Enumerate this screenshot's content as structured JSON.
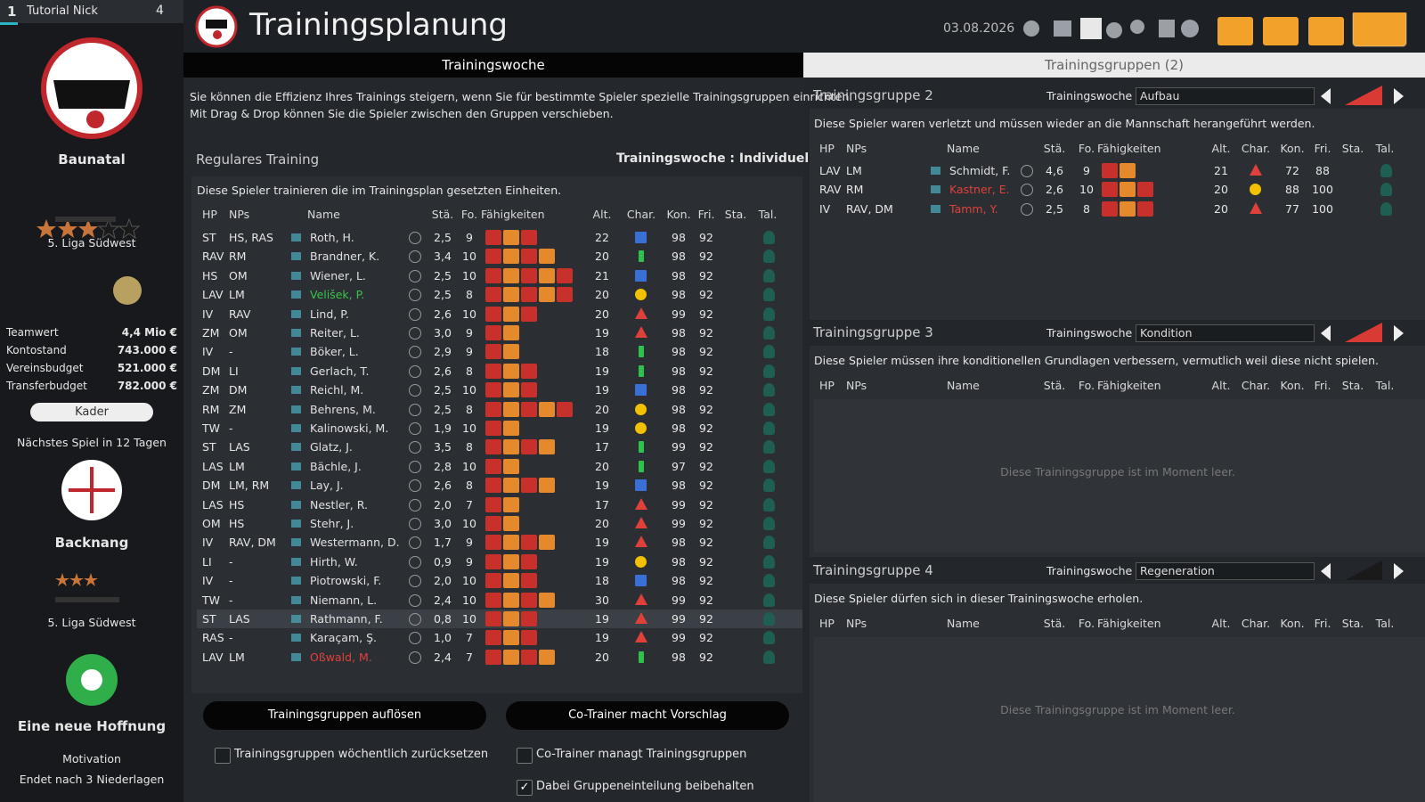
{
  "sidebar": {
    "rank": "1",
    "manager": "Tutorial Nick",
    "points": "4",
    "club": "Baunatal",
    "league": "5. Liga Südwest",
    "finances": [
      {
        "label": "Teamwert",
        "value": "4,4 Mio €"
      },
      {
        "label": "Kontostand",
        "value": "743.000 €"
      },
      {
        "label": "Vereinsbudget",
        "value": "521.000 €"
      },
      {
        "label": "Transferbudget",
        "value": "782.000 €"
      }
    ],
    "squad_button": "Kader",
    "next_match": "Nächstes Spiel in 12 Tagen",
    "opponent": "Backnang",
    "opponent_league": "5. Liga Südwest",
    "mood": "Eine neue Hoffnung",
    "motivation_label": "Motivation",
    "motivation_note": "Endet nach 3 Niederlagen"
  },
  "header": {
    "title": "Trainingsplanung",
    "date": "03.08.2026"
  },
  "tabs": [
    "Trainingswoche",
    "Trainingsgruppen (2)"
  ],
  "training_week": {
    "intro": [
      "Sie können die Effizienz Ihres Trainings steigern, wenn Sie für bestimmte Spieler spezielle Trainingsgruppen einrichten.",
      "Mit Drag & Drop können Sie die Spieler zwischen den Gruppen verschieben."
    ],
    "section": "Regulares Training",
    "mode": "Trainingswoche : Individuell",
    "note": "Diese Spieler trainieren die im Trainingsplan gesetzten Einheiten.",
    "columns": [
      "HP",
      "NPs",
      "Name",
      "Stä.",
      "Fo.",
      "Fähigkeiten",
      "Alt.",
      "Char.",
      "Kon.",
      "Fri.",
      "Sta.",
      "Tal."
    ],
    "rows": [
      {
        "hp": "ST",
        "nps": "HS, RAS",
        "name": "Roth, H.",
        "sta": "2,5",
        "fo": "9",
        "alt": "22",
        "kon": "98",
        "fri": "92"
      },
      {
        "hp": "RAV",
        "nps": "RM",
        "name": "Brandner, K.",
        "sta": "3,4",
        "fo": "10",
        "alt": "20",
        "kon": "98",
        "fri": "92"
      },
      {
        "hp": "HS",
        "nps": "OM",
        "name": "Wiener, L.",
        "sta": "2,5",
        "fo": "10",
        "alt": "21",
        "kon": "98",
        "fri": "92"
      },
      {
        "hp": "LAV",
        "nps": "LM",
        "name": "Velišek, P.",
        "color": "#3cc24a",
        "sta": "2,5",
        "fo": "8",
        "alt": "20",
        "kon": "98",
        "fri": "92"
      },
      {
        "hp": "IV",
        "nps": "RAV",
        "name": "Lind, P.",
        "sta": "2,6",
        "fo": "10",
        "alt": "20",
        "kon": "99",
        "fri": "92"
      },
      {
        "hp": "ZM",
        "nps": "OM",
        "name": "Reiter, L.",
        "sta": "3,0",
        "fo": "9",
        "alt": "19",
        "kon": "98",
        "fri": "92"
      },
      {
        "hp": "IV",
        "nps": "-",
        "name": "Böker, L.",
        "sta": "2,9",
        "fo": "9",
        "alt": "18",
        "kon": "98",
        "fri": "92"
      },
      {
        "hp": "DM",
        "nps": "LI",
        "name": "Gerlach, T.",
        "sta": "2,6",
        "fo": "8",
        "alt": "19",
        "kon": "98",
        "fri": "92"
      },
      {
        "hp": "ZM",
        "nps": "DM",
        "name": "Reichl, M.",
        "sta": "2,5",
        "fo": "10",
        "alt": "19",
        "kon": "98",
        "fri": "92"
      },
      {
        "hp": "RM",
        "nps": "ZM",
        "name": "Behrens, M.",
        "sta": "2,5",
        "fo": "8",
        "alt": "20",
        "kon": "98",
        "fri": "92"
      },
      {
        "hp": "TW",
        "nps": "-",
        "name": "Kalinowski, M.",
        "sta": "1,9",
        "fo": "10",
        "alt": "19",
        "kon": "98",
        "fri": "92"
      },
      {
        "hp": "ST",
        "nps": "LAS",
        "name": "Glatz, J.",
        "sta": "3,5",
        "fo": "8",
        "alt": "17",
        "kon": "99",
        "fri": "92"
      },
      {
        "hp": "LAS",
        "nps": "LM",
        "name": "Bächle, J.",
        "sta": "2,8",
        "fo": "10",
        "alt": "20",
        "kon": "97",
        "fri": "92"
      },
      {
        "hp": "DM",
        "nps": "LM, RM",
        "name": "Lay, J.",
        "sta": "2,6",
        "fo": "8",
        "alt": "19",
        "kon": "98",
        "fri": "92"
      },
      {
        "hp": "LAS",
        "nps": "HS",
        "name": "Nestler, R.",
        "sta": "2,0",
        "fo": "7",
        "alt": "17",
        "kon": "99",
        "fri": "92"
      },
      {
        "hp": "OM",
        "nps": "HS",
        "name": "Stehr, J.",
        "sta": "3,0",
        "fo": "10",
        "alt": "20",
        "kon": "99",
        "fri": "92"
      },
      {
        "hp": "IV",
        "nps": "RAV, DM",
        "name": "Westermann, D.",
        "sta": "1,7",
        "fo": "9",
        "alt": "19",
        "kon": "98",
        "fri": "92"
      },
      {
        "hp": "LI",
        "nps": "-",
        "name": "Hirth, W.",
        "sta": "0,9",
        "fo": "9",
        "alt": "19",
        "kon": "98",
        "fri": "92"
      },
      {
        "hp": "IV",
        "nps": "-",
        "name": "Piotrowski, F.",
        "sta": "2,0",
        "fo": "10",
        "alt": "18",
        "kon": "98",
        "fri": "92"
      },
      {
        "hp": "TW",
        "nps": "-",
        "name": "Niemann, L.",
        "sta": "2,4",
        "fo": "10",
        "alt": "30",
        "kon": "99",
        "fri": "92"
      },
      {
        "hp": "ST",
        "nps": "LAS",
        "name": "Rathmann, F.",
        "sta": "0,8",
        "fo": "10",
        "alt": "19",
        "kon": "99",
        "fri": "92"
      },
      {
        "hp": "RAS",
        "nps": "-",
        "name": "Karaçam, Ş.",
        "sta": "1,0",
        "fo": "7",
        "alt": "19",
        "kon": "99",
        "fri": "92"
      },
      {
        "hp": "LAV",
        "nps": "LM",
        "name": "Oßwald, M.",
        "color": "#e0403a",
        "sta": "2,4",
        "fo": "7",
        "alt": "20",
        "kon": "98",
        "fri": "92"
      }
    ],
    "buttons": [
      "Trainingsgruppen auflösen",
      "Co-Trainer macht Vorschlag"
    ],
    "options": [
      {
        "label": "Trainingsgruppen wöchentlich zurücksetzen",
        "checked": false
      },
      {
        "label": "Co-Trainer managt Trainingsgruppen",
        "checked": false
      },
      {
        "label": "Dabei Gruppeneinteilung beibehalten",
        "checked": true
      }
    ]
  },
  "groups": [
    {
      "title": "Trainingsgruppe 2",
      "week_label": "Trainingswoche",
      "plan": "Aufbau",
      "note": "Diese Spieler waren verletzt und müssen wieder an die Mannschaft herangeführt werden.",
      "columns": [
        "HP",
        "NPs",
        "Name",
        "Stä.",
        "Fo.",
        "Fähigkeiten",
        "Alt.",
        "Char.",
        "Kon.",
        "Fri.",
        "Sta.",
        "Tal."
      ],
      "rows": [
        {
          "hp": "LAV",
          "nps": "LM",
          "name": "Schmidt, F.",
          "sta": "4,6",
          "fo": "9",
          "alt": "21",
          "kon": "72",
          "fri": "88"
        },
        {
          "hp": "RAV",
          "nps": "RM",
          "name": "Kastner, E.",
          "color": "#e0403a",
          "sta": "2,6",
          "fo": "10",
          "alt": "20",
          "kon": "88",
          "fri": "100"
        },
        {
          "hp": "IV",
          "nps": "RAV, DM",
          "name": "Tamm, Y.",
          "color": "#e0403a",
          "sta": "2,5",
          "fo": "8",
          "alt": "20",
          "kon": "77",
          "fri": "100"
        }
      ]
    },
    {
      "title": "Trainingsgruppe 3",
      "week_label": "Trainingswoche",
      "plan": "Kondition",
      "note": "Diese Spieler müssen ihre konditionellen Grundlagen verbessern, vermutlich weil diese nicht spielen.",
      "columns": [
        "HP",
        "NPs",
        "Name",
        "Stä.",
        "Fo.",
        "Fähigkeiten",
        "Alt.",
        "Char.",
        "Kon.",
        "Fri.",
        "Sta.",
        "Tal."
      ],
      "rows": [],
      "empty": "Diese Trainingsgruppe ist im Moment leer."
    },
    {
      "title": "Trainingsgruppe 4",
      "week_label": "Trainingswoche",
      "plan": "Regeneration",
      "note": "Diese Spieler dürfen sich in dieser Trainingswoche erholen.",
      "columns": [
        "HP",
        "NPs",
        "Name",
        "Stä.",
        "Fo.",
        "Fähigkeiten",
        "Alt.",
        "Char.",
        "Kon.",
        "Fri.",
        "Sta.",
        "Tal."
      ],
      "rows": [],
      "empty": "Diese Trainingsgruppe ist im Moment leer."
    }
  ]
}
